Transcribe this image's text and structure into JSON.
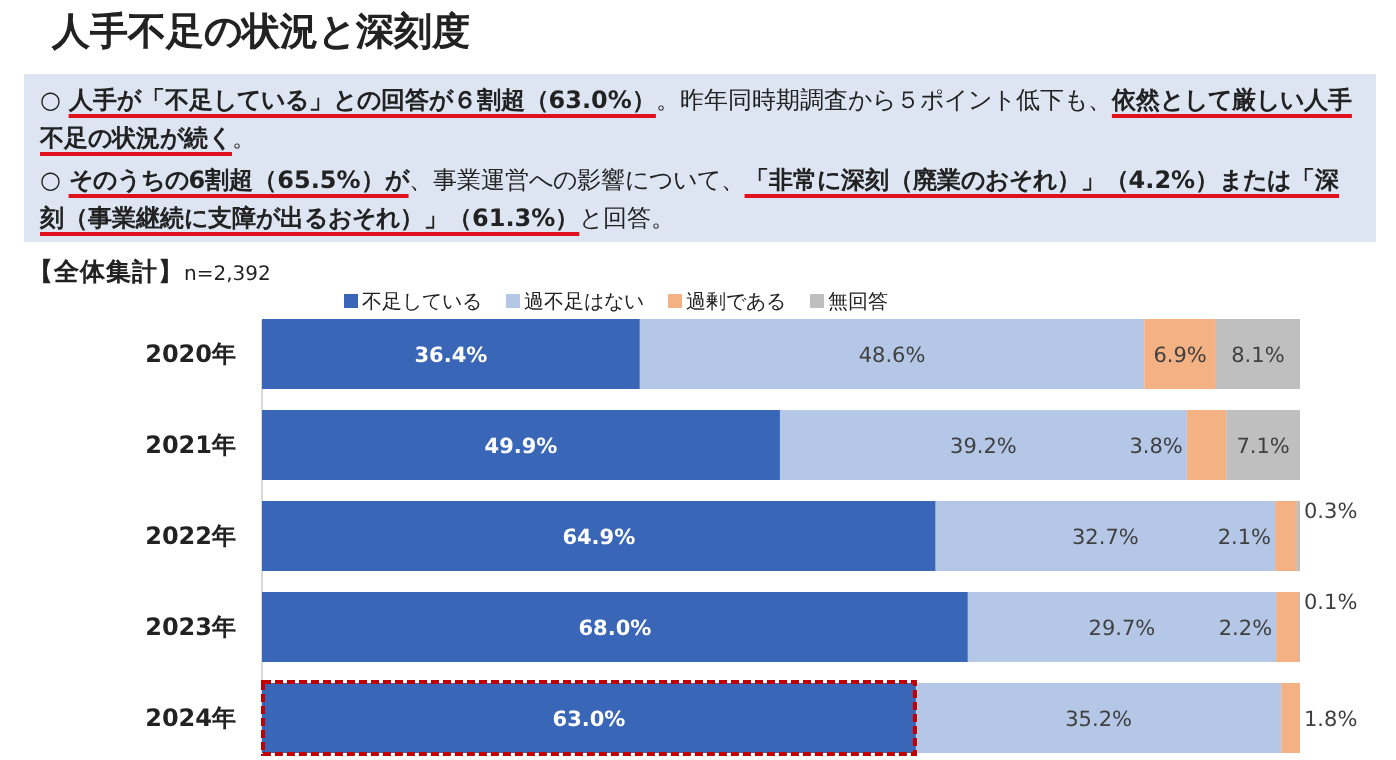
{
  "chart_data": {
    "type": "bar",
    "orientation": "horizontal",
    "stacked": true,
    "title": "人手不足の状況と深刻度",
    "annotations": [
      "○ **人手が「不足している」との回答が６割超（63.0%）**。昨年同時期調査から５ポイント低下も、**依然として厳しい人手不足の状況が続く**。",
      "○ **そのうちの6割超（65.5%）が**、事業運営への影響について、**「非常に深刻（廃業のおそれ）」（4.2%）または「深刻（事業継続に支障が出るおそれ）」（61.3%）**と回答。",
      "**【全体集計】**n=2,392"
    ],
    "categories": [
      "2020年",
      "2021年",
      "2022年",
      "2023年",
      "2024年"
    ],
    "series": [
      {
        "name": "不足している",
        "color": "#3a66b7",
        "values": [
          36.4,
          49.9,
          64.9,
          68.0,
          63.0
        ],
        "value_labels": [
          "36.4%",
          "49.9%",
          "64.9%",
          "68.0%",
          "63.0%"
        ]
      },
      {
        "name": "過不足はない",
        "color": "#b4c7e7",
        "values": [
          48.6,
          39.2,
          32.7,
          29.7,
          35.2
        ],
        "value_labels": [
          "48.6%",
          "39.2%",
          "32.7%",
          "29.7%",
          "35.2%"
        ]
      },
      {
        "name": "過剰である",
        "color": "#f4b183",
        "values": [
          6.9,
          3.8,
          2.1,
          2.2,
          1.8
        ],
        "value_labels": [
          "6.9%",
          "3.8%",
          "2.1%",
          "2.2%",
          "1.8%"
        ]
      },
      {
        "name": "無回答",
        "color": "#bfbfbf",
        "values": [
          8.1,
          7.1,
          0.3,
          0.1,
          null
        ],
        "value_labels": [
          "8.1%",
          "7.1%",
          "0.3%",
          "0.1%",
          null
        ]
      }
    ],
    "legend": "top"
  }
}
